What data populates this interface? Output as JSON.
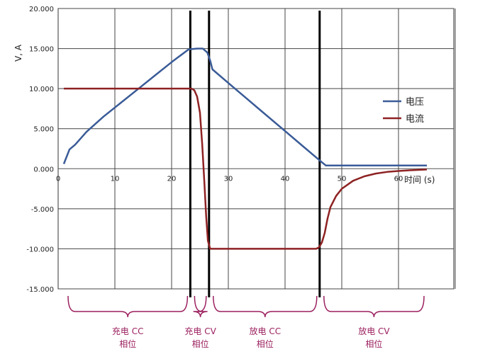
{
  "chart_data": {
    "type": "line",
    "ylabel": "V, A",
    "xlabel": "时间 (s)",
    "xlim": [
      0,
      70
    ],
    "ylim": [
      -15,
      20
    ],
    "x_ticks": [
      0,
      10,
      20,
      30,
      40,
      50,
      60
    ],
    "y_ticks": [
      20,
      15,
      10,
      5,
      0,
      -5,
      -10,
      -15
    ],
    "y_tick_labels": [
      "20.000",
      "15.000",
      "10.000",
      "5.000",
      "0.000",
      "-5.000",
      "-10.000",
      "-15.000"
    ],
    "grid": true,
    "legend_position": "right",
    "series": [
      {
        "name": "电压",
        "color": "#3a5b97",
        "x": [
          1,
          2,
          3,
          5,
          8,
          11,
          14,
          17,
          20,
          23,
          24.5,
          25.5,
          26.3,
          26.8,
          27.2,
          30,
          33,
          36,
          40,
          43,
          45,
          46.5,
          47.2,
          50,
          55,
          60,
          65
        ],
        "y": [
          0.6,
          2.4,
          3.0,
          4.6,
          6.5,
          8.2,
          9.9,
          11.6,
          13.3,
          14.9,
          15.0,
          15.0,
          14.5,
          13.5,
          12.4,
          10.7,
          8.9,
          7.1,
          4.7,
          2.9,
          1.7,
          0.8,
          0.4,
          0.4,
          0.4,
          0.4,
          0.4
        ]
      },
      {
        "name": "电流",
        "color": "#8e2223",
        "x": [
          1,
          5,
          10,
          15,
          20,
          23.5,
          24,
          24.5,
          25,
          25.4,
          25.8,
          26.1,
          26.4,
          26.8,
          28,
          32,
          36,
          40,
          44,
          45.5,
          46,
          46.5,
          47,
          47.5,
          48,
          49,
          50,
          52,
          54,
          56,
          58,
          60,
          62,
          65
        ],
        "y": [
          10,
          10,
          10,
          10,
          10,
          10,
          9.8,
          9,
          7,
          3,
          -2,
          -6,
          -9,
          -10,
          -10,
          -10,
          -10,
          -10,
          -10,
          -10,
          -9.8,
          -9.2,
          -8,
          -6.2,
          -4.8,
          -3.4,
          -2.5,
          -1.5,
          -0.95,
          -0.6,
          -0.4,
          -0.28,
          -0.2,
          -0.1
        ]
      }
    ],
    "phase_boundaries": [
      23.3,
      26.6,
      46.1
    ],
    "phases": [
      {
        "line1": "充电 CC",
        "line2": "相位",
        "x_start": 1,
        "x_end": 23.3
      },
      {
        "line1": "充电 CV",
        "line2": "相位",
        "x_start": 23.3,
        "x_end": 26.6
      },
      {
        "line1": "放电 CC",
        "line2": "相位",
        "x_start": 26.6,
        "x_end": 46.1
      },
      {
        "line1": "放电 CV",
        "line2": "相位",
        "x_start": 46.1,
        "x_end": 65
      }
    ],
    "phase_label_color": "#9b1f5e"
  }
}
